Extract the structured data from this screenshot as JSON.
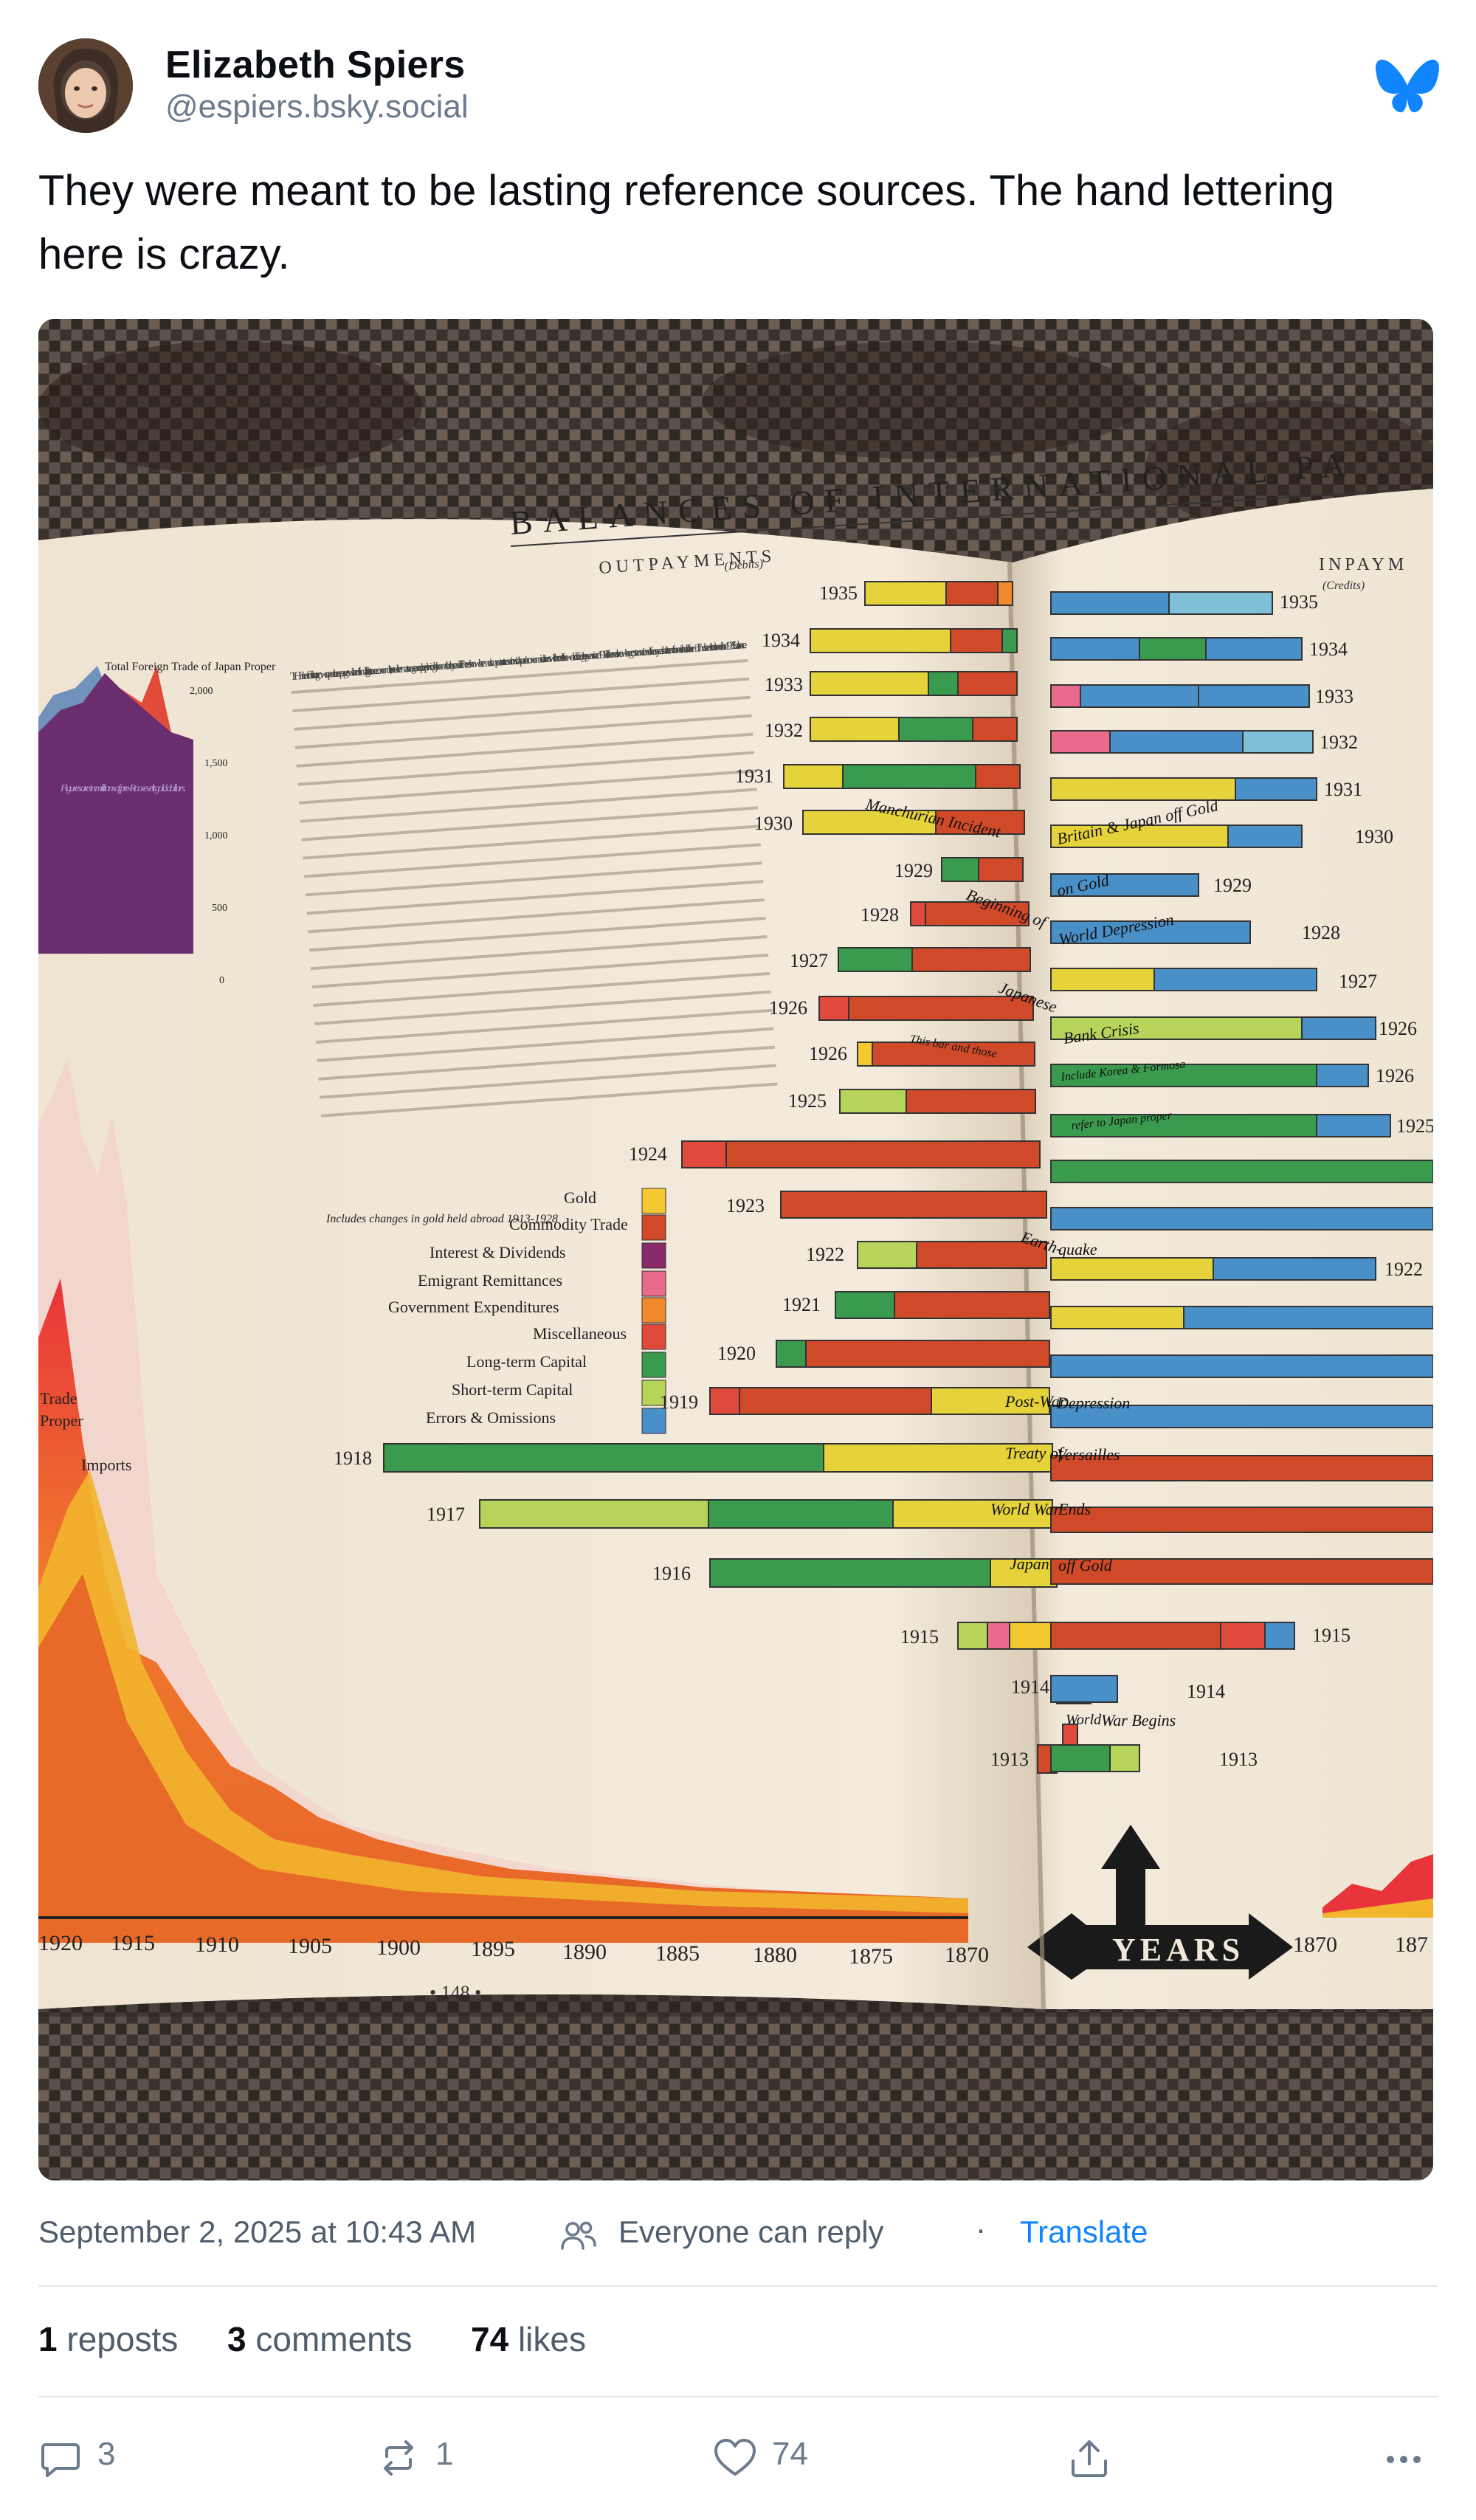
{
  "author": {
    "name": "Elizabeth Spiers",
    "handle": "@espiers.bsky.social"
  },
  "post": {
    "text": "They were meant to be lasting reference sources. The hand lettering here is crazy.",
    "timestamp": "September 2, 2025 at 10:43 AM",
    "reply_setting": "Everyone can reply",
    "translate_label": "Translate"
  },
  "stats": {
    "reposts_count": "1",
    "reposts_label": "reposts",
    "comments_count": "3",
    "comments_label": "comments",
    "likes_count": "74",
    "likes_label": "likes"
  },
  "actions": {
    "reply_count": "3",
    "repost_count": "1",
    "like_count": "74"
  },
  "image": {
    "chart_title": "BALANCES OF INTERNATIONAL PA",
    "left_subtitle": "OUTPAYMENTS",
    "left_subtitle_small": "(Debits)",
    "right_subtitle": "INPAYM",
    "right_subtitle_small": "(Credits)",
    "page_number": "• 148 •",
    "years_label": "YEARS",
    "left_axis_years": [
      "1920",
      "1915",
      "1910",
      "1905",
      "1900",
      "1895",
      "1890",
      "1885",
      "1880",
      "1875",
      "1870"
    ],
    "right_axis_years": [
      "1870",
      "187"
    ],
    "small_chart_title": "Total Foreign Trade of Japan Proper",
    "small_chart_ticks": [
      "2,000",
      "1,500",
      "1,000",
      "500",
      "0"
    ],
    "small_chart_note": "Figures are in millions of pre-Roosevelt gold dollars.",
    "left_chart_labels": [
      "Trade",
      "Proper",
      "Imports"
    ],
    "legend": [
      {
        "label": "Gold",
        "code": "A"
      },
      {
        "label": "Commodity Trade",
        "code": "B"
      },
      {
        "label": "Interest & Dividends",
        "code": "D"
      },
      {
        "label": "Emigrant Remittances",
        "code": "E"
      },
      {
        "label": "Government Expenditures",
        "code": "F"
      },
      {
        "label": "Miscellaneous",
        "code": "G"
      },
      {
        "label": "Long-term Capital",
        "code": "H"
      },
      {
        "label": "Short-term Capital",
        "code": "I"
      },
      {
        "label": "Errors & Omissions",
        "code": "J"
      }
    ],
    "legend_note": "Includes changes in gold held abroad 1913-1928",
    "left_years": [
      "1935",
      "1934",
      "1933",
      "1932",
      "1931",
      "1930",
      "1929",
      "1928",
      "1927",
      "1926",
      "1926",
      "1925",
      "1924",
      "1923",
      "1922",
      "1921",
      "1920",
      "1919",
      "1918",
      "1917",
      "1916",
      "1915",
      "1914",
      "1913"
    ],
    "right_years": [
      "1935",
      "1934",
      "1933",
      "1932",
      "1931",
      "1930",
      "1929",
      "1928",
      "1927",
      "1926",
      "1926",
      "1925",
      "1922",
      "1915",
      "1914",
      "1913"
    ],
    "bar_annotations": [
      "Manchurian Incident",
      "Beginning of",
      "Japanese",
      "This bar and those",
      "Earth-",
      "quake",
      "Post-War",
      "Depression",
      "Treaty of",
      "Versailles",
      "World War",
      "Ends",
      "Japan",
      "off Gold",
      "World",
      "War Begins",
      "Britain & Japan off Gold",
      "on Gold",
      "World Depression",
      "Bank Crisis",
      "Include Korea & Formosa",
      "refer to Japan proper"
    ],
    "body_paragraph": "THE tree of color that grows upon these pages will shed familiar light to an economist, but will seem a strange and perplexing bloom to the lay reader. The tree shows the most important transactions in Japan's economic relations with the rest of the world during the years since 1913. It does not show the gross transactions of those years but the net financial results of them. Thus the net balance in the 1935 balance."
  }
}
